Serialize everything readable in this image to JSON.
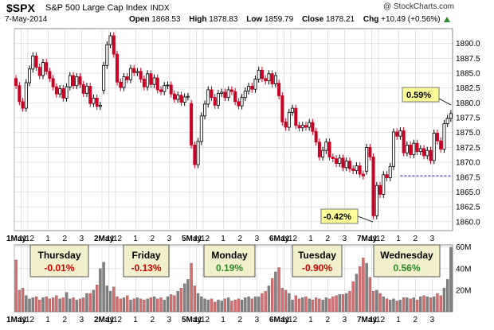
{
  "header": {
    "ticker": "$SPX",
    "name": "S&P 500 Large Cap Index",
    "exchange": "INDX",
    "date": "7-May-2014",
    "credit": "@ StockCharts.com",
    "open_label": "Open",
    "open": "1868.53",
    "high_label": "High",
    "high": "1878.83",
    "low_label": "Low",
    "low": "1859.79",
    "close_label": "Close",
    "close": "1878.21",
    "chg_label": "Chg",
    "chg": "+10.49 (+0.56%)"
  },
  "chart_data": [
    {
      "type": "candlestick",
      "title": "",
      "ylim": [
        1858.5,
        1892.5
      ],
      "yticks": [
        1860.0,
        1862.5,
        1865.0,
        1867.5,
        1870.0,
        1872.5,
        1875.0,
        1877.5,
        1880.0,
        1882.5,
        1885.0,
        1887.5,
        1890.0
      ],
      "ytick_labels": [
        "1860.0",
        "1862.5",
        "1865.0",
        "1867.5",
        "1870.0",
        "1872.5",
        "1875.0",
        "1877.5",
        "1880.0",
        "1882.5",
        "1885.0",
        "1887.5",
        "1890.0"
      ],
      "x_labels": [
        "1May",
        "11",
        "12",
        "1",
        "2",
        "3",
        "2May",
        "11",
        "12",
        "1",
        "2",
        "3",
        "5May",
        "11",
        "12",
        "1",
        "2",
        "3",
        "6May",
        "11",
        "12",
        "1",
        "2",
        "3",
        "7May",
        "11",
        "12",
        "1",
        "2",
        "3"
      ],
      "prior_close": 1867.72,
      "prior_close_line": "dashed",
      "callouts": [
        {
          "text": "0.59%",
          "x_index": 11.4,
          "y": 1879.6
        },
        {
          "text": "-0.42%",
          "x_index": 5.9,
          "y": 1860.9
        }
      ],
      "days": [
        {
          "name": "Thursday",
          "change": "-0.01%",
          "color": "#cc0000",
          "start": 0,
          "count": 26,
          "closes": [
            1882.9,
            1880.2,
            1879.1,
            1883.4,
            1885.7,
            1887.9,
            1886.0,
            1884.6,
            1886.8,
            1885.3,
            1884.1,
            1882.7,
            1881.5,
            1882.4,
            1880.8,
            1882.7,
            1884.6,
            1882.9,
            1884.4,
            1883.1,
            1881.6,
            1882.8,
            1879.9,
            1880.8,
            1879.4,
            1879.6
          ],
          "open": 1884.1
        },
        {
          "name": "Friday",
          "change": "-0.13%",
          "color": "#cc0000",
          "start": 26,
          "count": 26,
          "closes": [
            1886.3,
            1889.8,
            1891.3,
            1888.2,
            1883.5,
            1882.6,
            1884.4,
            1883.9,
            1885.8,
            1885.1,
            1885.3,
            1884.0,
            1882.7,
            1884.9,
            1883.1,
            1884.2,
            1882.2,
            1881.9,
            1882.9,
            1883.0,
            1881.5,
            1880.6,
            1881.3,
            1880.1,
            1881.0,
            1881.1
          ],
          "open": 1882.1
        },
        {
          "name": "Monday",
          "change": "0.19%",
          "color": "#2a8a2a",
          "start": 52,
          "count": 26,
          "closes": [
            1872.9,
            1869.6,
            1873.5,
            1877.8,
            1879.8,
            1882.2,
            1880.9,
            1879.6,
            1881.6,
            1881.8,
            1880.9,
            1882.2,
            1881.9,
            1880.2,
            1879.5,
            1880.9,
            1882.0,
            1882.8,
            1882.3,
            1884.0,
            1885.5,
            1884.1,
            1883.7,
            1884.9,
            1883.2,
            1884.6
          ],
          "open": 1879.9
        },
        {
          "name": "Tuesday",
          "change": "-0.90%",
          "color": "#cc0000",
          "start": 78,
          "count": 26,
          "closes": [
            1881.2,
            1876.8,
            1875.9,
            1878.4,
            1879.1,
            1876.2,
            1875.8,
            1876.2,
            1875.9,
            1876.7,
            1875.2,
            1873.4,
            1870.9,
            1872.0,
            1873.4,
            1870.9,
            1870.6,
            1869.8,
            1870.7,
            1869.1,
            1870.2,
            1868.9,
            1868.6,
            1869.4,
            1868.0,
            1867.7
          ],
          "open": 1883.3
        },
        {
          "name": "Wednesday",
          "change": "0.56%",
          "color": "#2a8a2a",
          "start": 104,
          "count": 26,
          "closes": [
            1872.5,
            1870.9,
            1861.0,
            1866.1,
            1864.6,
            1867.9,
            1867.4,
            1869.3,
            1875.1,
            1874.4,
            1875.3,
            1871.6,
            1872.9,
            1871.3,
            1873.2,
            1871.8,
            1872.3,
            1871.1,
            1872.0,
            1870.3,
            1874.9,
            1873.6,
            1872.2,
            1876.5,
            1877.4,
            1878.2
          ],
          "open": 1868.5
        }
      ]
    },
    {
      "type": "bar",
      "title": "",
      "ylim": [
        0,
        62
      ],
      "yticks": [
        20,
        40,
        60
      ],
      "ytick_labels": [
        "20M",
        "40M",
        "60M"
      ],
      "volumes": [
        48,
        20,
        22,
        15,
        12,
        13,
        14,
        11,
        13,
        14,
        12,
        13,
        15,
        12,
        13,
        18,
        12,
        13,
        11,
        12,
        13,
        17,
        17,
        20,
        25,
        40,
        46,
        24,
        19,
        23,
        14,
        12,
        13,
        15,
        11,
        12,
        13,
        12,
        11,
        12,
        13,
        14,
        12,
        13,
        11,
        14,
        16,
        15,
        19,
        22,
        26,
        30,
        45,
        24,
        17,
        14,
        12,
        11,
        12,
        9,
        11,
        10,
        12,
        13,
        10,
        11,
        12,
        11,
        13,
        14,
        12,
        14,
        14,
        17,
        19,
        24,
        31,
        37,
        41,
        22,
        20,
        17,
        11,
        15,
        12,
        13,
        14,
        12,
        11,
        13,
        12,
        11,
        13,
        12,
        14,
        15,
        16,
        16,
        17,
        19,
        28,
        35,
        42,
        50,
        45,
        32,
        19,
        20,
        17,
        14,
        12,
        11,
        12,
        10,
        11,
        13,
        13,
        12,
        13,
        11,
        14,
        15,
        14,
        13,
        14,
        17,
        15,
        22,
        30,
        60
      ]
    }
  ],
  "boxes": [
    {
      "day": "Thursday",
      "pct": "-0.01%"
    },
    {
      "day": "Friday",
      "pct": "-0.13%"
    },
    {
      "day": "Monday",
      "pct": "0.19%"
    },
    {
      "day": "Tuesday",
      "pct": "-0.90%"
    },
    {
      "day": "Wednesday",
      "pct": "0.56%"
    }
  ],
  "colors": {
    "up": "#000000",
    "down": "#cc0022",
    "grid": "#d0d0d0",
    "bg": "#ffffff",
    "vol_up": "#808080",
    "vol_down": "#dd6b6b",
    "callout": "#ffff99"
  }
}
